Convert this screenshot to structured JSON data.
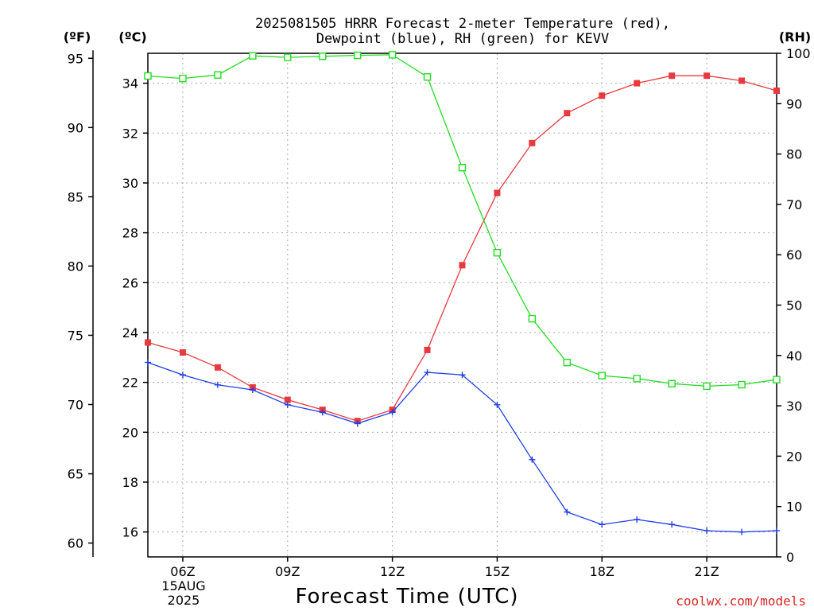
{
  "chart_data": {
    "type": "line",
    "title": [
      "2025081505 HRRR Forecast 2-meter Temperature (red),",
      "Dewpoint (blue), RH (green) for KEVV"
    ],
    "xlabel": "Forecast Time (UTC)",
    "credit": "coolwx.com/models",
    "date_label": [
      "15AUG",
      "2025"
    ],
    "axis_units": {
      "fahrenheit": "(ºF)",
      "celsius": "(ºC)",
      "rh": "(RH)"
    },
    "x": [
      "05Z",
      "06Z",
      "07Z",
      "08Z",
      "09Z",
      "10Z",
      "11Z",
      "12Z",
      "13Z",
      "14Z",
      "15Z",
      "16Z",
      "17Z",
      "18Z",
      "19Z",
      "20Z",
      "21Z",
      "22Z",
      "23Z"
    ],
    "x_tick_labels": [
      "06Z",
      "09Z",
      "12Z",
      "15Z",
      "18Z",
      "21Z"
    ],
    "celsius_ylim": [
      15.0,
      35.2
    ],
    "celsius_ticks": [
      16,
      18,
      20,
      22,
      24,
      26,
      28,
      30,
      32,
      34
    ],
    "fahrenheit_ticks": [
      60,
      65,
      70,
      75,
      80,
      85,
      90,
      95
    ],
    "rh_ylim": [
      0,
      100
    ],
    "rh_ticks": [
      0,
      10,
      20,
      30,
      40,
      50,
      60,
      70,
      80,
      90,
      100
    ],
    "grid": true,
    "series": [
      {
        "name": "Temperature",
        "axis": "celsius",
        "color": "#e8393f",
        "marker": "filled-square",
        "values": [
          23.6,
          23.2,
          22.6,
          21.8,
          21.3,
          20.9,
          20.45,
          20.9,
          23.3,
          26.7,
          29.6,
          31.6,
          32.8,
          33.5,
          34.0,
          34.3,
          34.3,
          34.1,
          33.7
        ]
      },
      {
        "name": "Dewpoint",
        "axis": "celsius",
        "color": "#1f3fe6",
        "marker": "plus",
        "values": [
          22.8,
          22.3,
          21.9,
          21.7,
          21.1,
          20.8,
          20.35,
          20.8,
          22.4,
          22.3,
          21.1,
          18.9,
          16.8,
          16.3,
          16.5,
          16.3,
          16.05,
          16.0,
          16.05
        ]
      },
      {
        "name": "RH",
        "axis": "rh",
        "color": "#22dd22",
        "marker": "open-square",
        "values": [
          95.5,
          95.0,
          95.7,
          99.5,
          99.2,
          99.4,
          99.6,
          99.7,
          95.3,
          77.3,
          60.4,
          47.3,
          38.6,
          36.0,
          35.4,
          34.4,
          33.9,
          34.2,
          35.2
        ]
      }
    ]
  }
}
